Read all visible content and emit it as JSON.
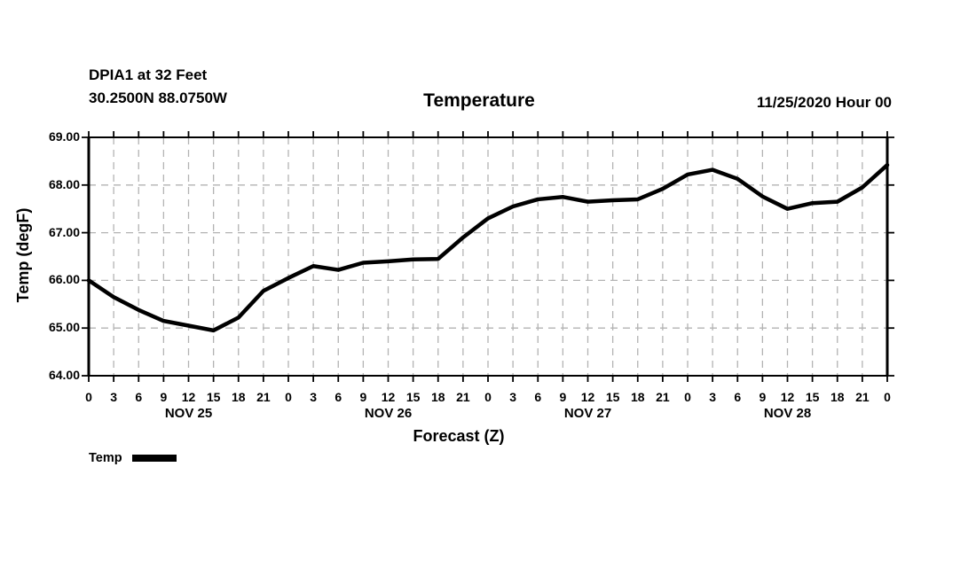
{
  "header": {
    "station_line1": "DPIA1 at 32 Feet",
    "station_line2": "30.2500N 88.0750W",
    "title": "Temperature",
    "init_time": "11/25/2020 Hour 00"
  },
  "legend": {
    "label": "Temp",
    "line_color": "#000000"
  },
  "chart_data": {
    "type": "line",
    "title": "Temperature",
    "xlabel": "Forecast (Z)",
    "ylabel": "Temp (degF)",
    "ylim": [
      64,
      69
    ],
    "ytick_labels": [
      "64.00",
      "65.00",
      "66.00",
      "67.00",
      "68.00",
      "69.00"
    ],
    "hours": [
      0,
      3,
      6,
      9,
      12,
      15,
      18,
      21,
      24,
      27,
      30,
      33,
      36,
      39,
      42,
      45,
      48,
      51,
      54,
      57,
      60,
      63,
      66,
      69,
      72,
      75,
      78,
      81,
      84,
      87,
      90,
      93,
      96
    ],
    "hour_tick_labels": [
      "0",
      "3",
      "6",
      "9",
      "12",
      "15",
      "18",
      "21",
      "0",
      "3",
      "6",
      "9",
      "12",
      "15",
      "18",
      "21",
      "0",
      "3",
      "6",
      "9",
      "12",
      "15",
      "18",
      "21",
      "0",
      "3",
      "6",
      "9",
      "12",
      "15",
      "18",
      "21",
      "0"
    ],
    "day_labels": [
      "NOV 25",
      "NOV 26",
      "NOV 27",
      "NOV 28"
    ],
    "grid": "dashed",
    "grid_color": "#b3b3b3",
    "frame_color": "#000000",
    "legend_position": "bottom-left",
    "series": [
      {
        "name": "Temp",
        "color": "#000000",
        "values": [
          66.0,
          65.65,
          65.38,
          65.15,
          65.05,
          64.95,
          65.22,
          65.78,
          66.05,
          66.3,
          66.22,
          66.37,
          66.4,
          66.44,
          66.45,
          66.9,
          67.3,
          67.55,
          67.7,
          67.75,
          67.65,
          67.68,
          67.7,
          67.92,
          68.22,
          68.32,
          68.13,
          67.76,
          67.5,
          67.62,
          67.65,
          67.95,
          68.42
        ]
      }
    ]
  }
}
